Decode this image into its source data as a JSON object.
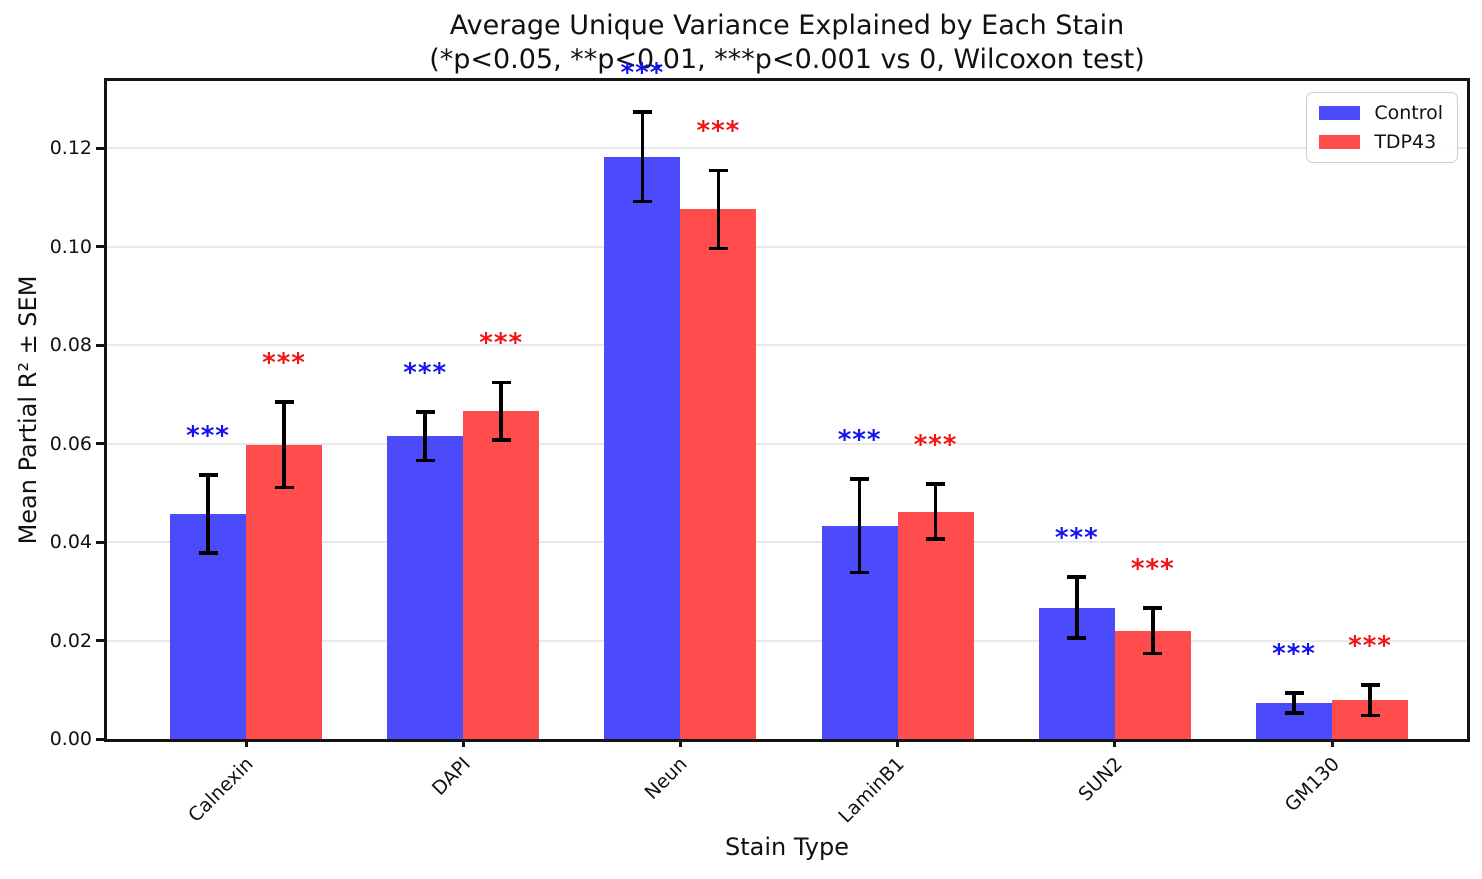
{
  "title": "Average Unique Variance Explained by Each Stain",
  "subtitle": "(*p<0.05, **p<0.01, ***p<0.001 vs 0, Wilcoxon test)",
  "legend": {
    "items": [
      {
        "label": "Control",
        "color": "#4B4BFB"
      },
      {
        "label": "TDP43",
        "color": "#FF4D4D"
      }
    ]
  },
  "chart_data": {
    "type": "bar",
    "title": "Average Unique Variance Explained by Each Stain",
    "subtitle": "(*p<0.05, **p<0.01, ***p<0.001 vs 0, Wilcoxon test)",
    "xlabel": "Stain Type",
    "ylabel": "Mean Partial R² ± SEM",
    "categories": [
      "Calnexin",
      "DAPI",
      "Neun",
      "LaminB1",
      "SUN2",
      "GM130"
    ],
    "series": [
      {
        "name": "Control",
        "color": "#4B4BFB",
        "star_color": "#1414F0",
        "values": [
          0.0457,
          0.0615,
          0.1183,
          0.0433,
          0.0267,
          0.0073
        ],
        "sem": [
          0.0079,
          0.0049,
          0.0091,
          0.0095,
          0.0062,
          0.002
        ],
        "significance": [
          "***",
          "***",
          "***",
          "***",
          "***",
          "***"
        ]
      },
      {
        "name": "TDP43",
        "color": "#FF4D4D",
        "star_color": "#F01414",
        "values": [
          0.0598,
          0.0666,
          0.1076,
          0.0462,
          0.022,
          0.0079
        ],
        "sem": [
          0.0087,
          0.0058,
          0.0079,
          0.0056,
          0.0046,
          0.0031
        ],
        "significance": [
          "***",
          "***",
          "***",
          "***",
          "***",
          "***"
        ]
      }
    ],
    "ylim": [
      0,
      0.1337
    ],
    "yticks": [
      0.0,
      0.02,
      0.04,
      0.06,
      0.08,
      0.1,
      0.12
    ],
    "ytick_labels": [
      "0.00",
      "0.02",
      "0.04",
      "0.06",
      "0.08",
      "0.10",
      "0.12"
    ],
    "grid": true,
    "error_bars": "SEM, black capped",
    "legend_position": "upper right"
  }
}
